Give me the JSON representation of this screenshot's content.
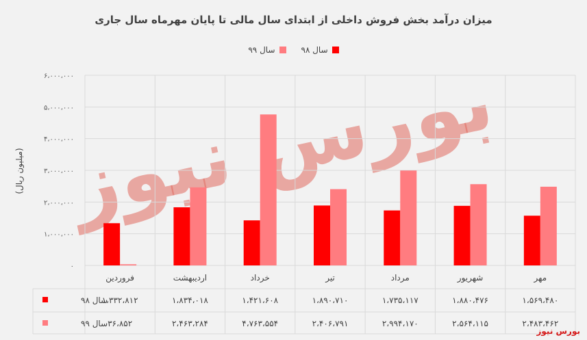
{
  "chart_data": {
    "type": "bar",
    "title": "میزان درآمد بخش فروش داخلی از ابتدای سال مالی تا پایان مهرماه سال جاری",
    "ylabel": "(میلیون ریال)",
    "ylim": [
      0,
      6000000
    ],
    "yticks": [
      0,
      1000000,
      2000000,
      3000000,
      4000000,
      5000000,
      6000000
    ],
    "ytick_labels": [
      "۰",
      "۱،۰۰۰،۰۰۰",
      "۲،۰۰۰،۰۰۰",
      "۳،۰۰۰،۰۰۰",
      "۴،۰۰۰،۰۰۰",
      "۵،۰۰۰،۰۰۰",
      "۶،۰۰۰،۰۰۰"
    ],
    "categories": [
      "فروردین",
      "اردیبهشت",
      "خرداد",
      "تیر",
      "مرداد",
      "شهریور",
      "مهر"
    ],
    "series": [
      {
        "name": "سال ۹۸",
        "color": "#ff0000",
        "values": [
          1332812,
          1834018,
          1421608,
          1890710,
          1735117,
          1880476,
          1569480
        ],
        "labels": [
          "۱،۳۳۲،۸۱۲",
          "۱،۸۳۴،۰۱۸",
          "۱،۴۲۱،۶۰۸",
          "۱،۸۹۰،۷۱۰",
          "۱،۷۳۵،۱۱۷",
          "۱،۸۸۰،۴۷۶",
          "۱،۵۶۹،۴۸۰"
        ]
      },
      {
        "name": "سال ۹۹",
        "color": "#ff7c80",
        "values": [
          36852,
          2463284,
          4763554,
          2406791,
          2994170,
          2564115,
          2483462
        ],
        "labels": [
          "۳۶،۸۵۲",
          "۲،۴۶۳،۲۸۴",
          "۴،۷۶۳،۵۵۴",
          "۲،۴۰۶،۷۹۱",
          "۲،۹۹۴،۱۷۰",
          "۲،۵۶۴،۱۱۵",
          "۲،۴۸۳،۴۶۲"
        ]
      }
    ],
    "legend_position": "top",
    "grid": true,
    "data_table": true
  },
  "watermark": "بورس نیوز",
  "brand": "بورس نیوز"
}
